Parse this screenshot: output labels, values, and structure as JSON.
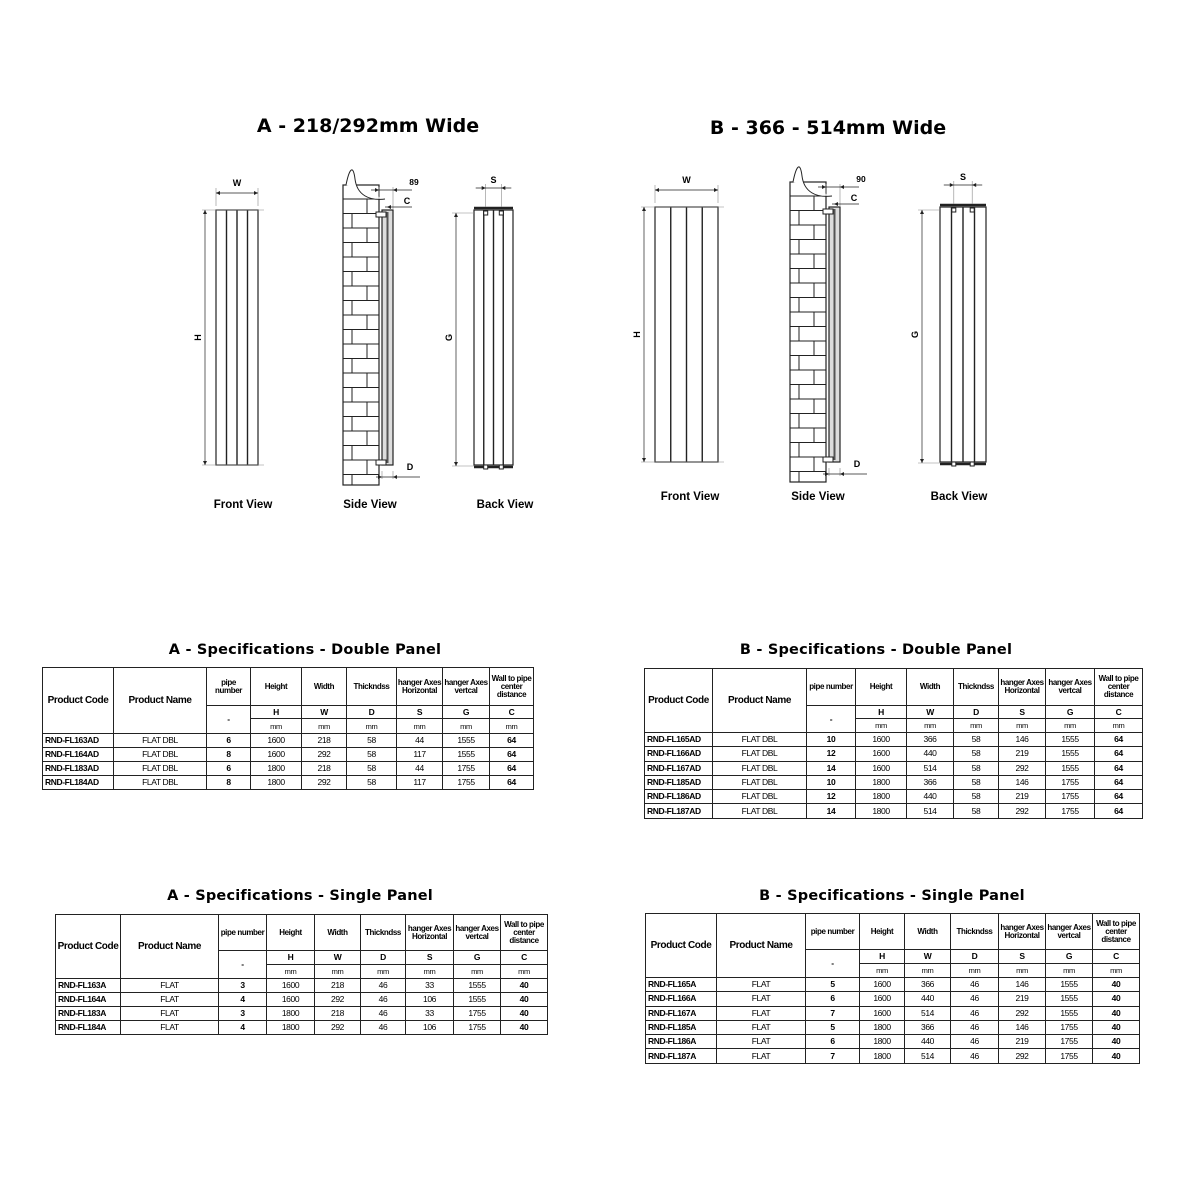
{
  "diagrams": [
    {
      "title": "A - 218/292mm Wide",
      "labels": {
        "w": "W",
        "h": "H",
        "offset": "89",
        "c": "C",
        "d": "D",
        "s": "S",
        "g": "G",
        "front": "Front View",
        "side": "Side View",
        "back": "Back View"
      }
    },
    {
      "title": "B - 366 - 514mm Wide",
      "labels": {
        "w": "W",
        "h": "H",
        "offset": "90",
        "c": "C",
        "d": "D",
        "s": "S",
        "g": "G",
        "front": "Front View",
        "side": "Side View",
        "back": "Back View"
      }
    }
  ],
  "header": {
    "product_code": "Product Code",
    "product_name": "Product Name",
    "columns": [
      {
        "label": "pipe number",
        "symbol": "-",
        "unit": ""
      },
      {
        "label": "Height",
        "symbol": "H",
        "unit": "mm"
      },
      {
        "label": "Width",
        "symbol": "W",
        "unit": "mm"
      },
      {
        "label": "Thickndss",
        "symbol": "D",
        "unit": "mm"
      },
      {
        "label": "hanger Axes Horizontal",
        "symbol": "S",
        "unit": "mm"
      },
      {
        "label": "hanger Axes vertcal",
        "symbol": "G",
        "unit": "mm"
      },
      {
        "label": "Wall to pipe center distance",
        "symbol": "C",
        "unit": "mm"
      }
    ]
  },
  "tables": [
    {
      "title": "A - Specifications - Double Panel",
      "rows": [
        [
          "RND-FL163AD",
          "FLAT DBL",
          "6",
          "1600",
          "218",
          "58",
          "44",
          "1555",
          "64"
        ],
        [
          "RND-FL164AD",
          "FLAT DBL",
          "8",
          "1600",
          "292",
          "58",
          "117",
          "1555",
          "64"
        ],
        [
          "RND-FL183AD",
          "FLAT DBL",
          "6",
          "1800",
          "218",
          "58",
          "44",
          "1755",
          "64"
        ],
        [
          "RND-FL184AD",
          "FLAT DBL",
          "8",
          "1800",
          "292",
          "58",
          "117",
          "1755",
          "64"
        ]
      ]
    },
    {
      "title": "B - Specifications - Double Panel",
      "rows": [
        [
          "RND-FL165AD",
          "FLAT DBL",
          "10",
          "1600",
          "366",
          "58",
          "146",
          "1555",
          "64"
        ],
        [
          "RND-FL166AD",
          "FLAT DBL",
          "12",
          "1600",
          "440",
          "58",
          "219",
          "1555",
          "64"
        ],
        [
          "RND-FL167AD",
          "FLAT DBL",
          "14",
          "1600",
          "514",
          "58",
          "292",
          "1555",
          "64"
        ],
        [
          "RND-FL185AD",
          "FLAT DBL",
          "10",
          "1800",
          "366",
          "58",
          "146",
          "1755",
          "64"
        ],
        [
          "RND-FL186AD",
          "FLAT DBL",
          "12",
          "1800",
          "440",
          "58",
          "219",
          "1755",
          "64"
        ],
        [
          "RND-FL187AD",
          "FLAT DBL",
          "14",
          "1800",
          "514",
          "58",
          "292",
          "1755",
          "64"
        ]
      ]
    },
    {
      "title": "A - Specifications - Single Panel",
      "rows": [
        [
          "RND-FL163A",
          "FLAT",
          "3",
          "1600",
          "218",
          "46",
          "33",
          "1555",
          "40"
        ],
        [
          "RND-FL164A",
          "FLAT",
          "4",
          "1600",
          "292",
          "46",
          "106",
          "1555",
          "40"
        ],
        [
          "RND-FL183A",
          "FLAT",
          "3",
          "1800",
          "218",
          "46",
          "33",
          "1755",
          "40"
        ],
        [
          "RND-FL184A",
          "FLAT",
          "4",
          "1800",
          "292",
          "46",
          "106",
          "1755",
          "40"
        ]
      ]
    },
    {
      "title": "B - Specifications - Single Panel",
      "rows": [
        [
          "RND-FL165A",
          "FLAT",
          "5",
          "1600",
          "366",
          "46",
          "146",
          "1555",
          "40"
        ],
        [
          "RND-FL166A",
          "FLAT",
          "6",
          "1600",
          "440",
          "46",
          "219",
          "1555",
          "40"
        ],
        [
          "RND-FL167A",
          "FLAT",
          "7",
          "1600",
          "514",
          "46",
          "292",
          "1555",
          "40"
        ],
        [
          "RND-FL185A",
          "FLAT",
          "5",
          "1800",
          "366",
          "46",
          "146",
          "1755",
          "40"
        ],
        [
          "RND-FL186A",
          "FLAT",
          "6",
          "1800",
          "440",
          "46",
          "219",
          "1755",
          "40"
        ],
        [
          "RND-FL187A",
          "FLAT",
          "7",
          "1800",
          "514",
          "46",
          "292",
          "1755",
          "40"
        ]
      ]
    }
  ]
}
